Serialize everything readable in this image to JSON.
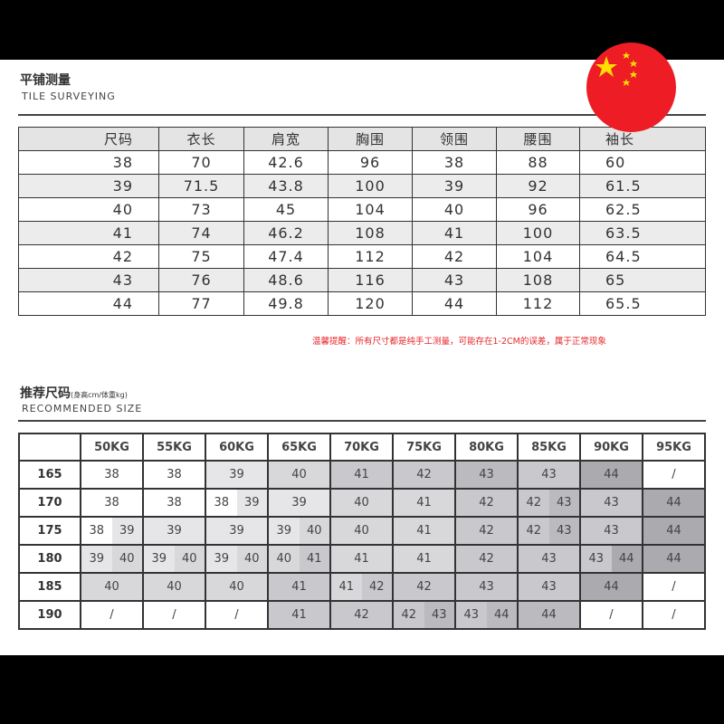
{
  "measure": {
    "title": "平铺测量",
    "subtitle": "TILE SURVEYING",
    "headers": [
      "尺码",
      "衣长",
      "肩宽",
      "胸围",
      "领围",
      "腰围",
      "袖长"
    ],
    "rows": [
      [
        "38",
        "70",
        "42.6",
        "96",
        "38",
        "88",
        "60"
      ],
      [
        "39",
        "71.5",
        "43.8",
        "100",
        "39",
        "92",
        "61.5"
      ],
      [
        "40",
        "73",
        "45",
        "104",
        "40",
        "96",
        "62.5"
      ],
      [
        "41",
        "74",
        "46.2",
        "108",
        "41",
        "100",
        "63.5"
      ],
      [
        "42",
        "75",
        "47.4",
        "112",
        "42",
        "104",
        "64.5"
      ],
      [
        "43",
        "76",
        "48.6",
        "116",
        "43",
        "108",
        "65"
      ],
      [
        "44",
        "77",
        "49.8",
        "120",
        "44",
        "112",
        "65.5"
      ]
    ],
    "note": "温馨提醒：所有尺寸都是纯手工测量，可能存在1-2CM的误差，属于正常现象"
  },
  "recommend": {
    "title": "推荐尺码",
    "title_note": "(身高cm/体重kg)",
    "subtitle": "RECOMMENDED SIZE",
    "weights": [
      "50KG",
      "55KG",
      "60KG",
      "65KG",
      "70KG",
      "75KG",
      "80KG",
      "85KG",
      "90KG",
      "95KG"
    ],
    "shade_colors": [
      "#ffffff",
      "#e6e6e8",
      "#d8d8db",
      "#c9c9cd",
      "#bbbbbf",
      "#aaaaaf"
    ],
    "rows": [
      {
        "height": "165",
        "cells": [
          [
            [
              "38",
              0
            ]
          ],
          [
            [
              "38",
              0
            ]
          ],
          [
            [
              "39",
              1
            ]
          ],
          [
            [
              "40",
              2
            ]
          ],
          [
            [
              "41",
              3
            ]
          ],
          [
            [
              "42",
              3
            ]
          ],
          [
            [
              "43",
              4
            ]
          ],
          [
            [
              "43",
              3
            ]
          ],
          [
            [
              "44",
              5
            ]
          ],
          [
            [
              "/",
              0
            ]
          ]
        ]
      },
      {
        "height": "170",
        "cells": [
          [
            [
              "38",
              0
            ]
          ],
          [
            [
              "38",
              0
            ]
          ],
          [
            [
              "38",
              0
            ],
            [
              "39",
              1
            ]
          ],
          [
            [
              "39",
              1
            ]
          ],
          [
            [
              "40",
              2
            ]
          ],
          [
            [
              "41",
              2
            ]
          ],
          [
            [
              "42",
              3
            ]
          ],
          [
            [
              "42",
              3
            ],
            [
              "43",
              4
            ]
          ],
          [
            [
              "43",
              3
            ]
          ],
          [
            [
              "44",
              5
            ]
          ]
        ]
      },
      {
        "height": "175",
        "cells": [
          [
            [
              "38",
              0
            ],
            [
              "39",
              1
            ]
          ],
          [
            [
              "39",
              1
            ]
          ],
          [
            [
              "39",
              1
            ]
          ],
          [
            [
              "39",
              1
            ],
            [
              "40",
              2
            ]
          ],
          [
            [
              "40",
              2
            ]
          ],
          [
            [
              "41",
              2
            ]
          ],
          [
            [
              "42",
              3
            ]
          ],
          [
            [
              "42",
              3
            ],
            [
              "43",
              4
            ]
          ],
          [
            [
              "43",
              3
            ]
          ],
          [
            [
              "44",
              5
            ]
          ]
        ]
      },
      {
        "height": "180",
        "cells": [
          [
            [
              "39",
              1
            ],
            [
              "40",
              2
            ]
          ],
          [
            [
              "39",
              1
            ],
            [
              "40",
              2
            ]
          ],
          [
            [
              "39",
              1
            ],
            [
              "40",
              2
            ]
          ],
          [
            [
              "40",
              2
            ],
            [
              "41",
              3
            ]
          ],
          [
            [
              "41",
              2
            ]
          ],
          [
            [
              "41",
              2
            ]
          ],
          [
            [
              "42",
              3
            ]
          ],
          [
            [
              "43",
              3
            ]
          ],
          [
            [
              "43",
              3
            ],
            [
              "44",
              5
            ]
          ],
          [
            [
              "44",
              5
            ]
          ]
        ]
      },
      {
        "height": "185",
        "cells": [
          [
            [
              "40",
              2
            ]
          ],
          [
            [
              "40",
              2
            ]
          ],
          [
            [
              "40",
              2
            ]
          ],
          [
            [
              "41",
              3
            ]
          ],
          [
            [
              "41",
              2
            ],
            [
              "42",
              3
            ]
          ],
          [
            [
              "42",
              3
            ]
          ],
          [
            [
              "43",
              3
            ]
          ],
          [
            [
              "43",
              3
            ]
          ],
          [
            [
              "44",
              5
            ]
          ],
          [
            [
              "/",
              0
            ]
          ]
        ]
      },
      {
        "height": "190",
        "cells": [
          [
            [
              "/",
              0
            ]
          ],
          [
            [
              "/",
              0
            ]
          ],
          [
            [
              "/",
              0
            ]
          ],
          [
            [
              "41",
              3
            ]
          ],
          [
            [
              "42",
              3
            ]
          ],
          [
            [
              "42",
              3
            ],
            [
              "43",
              4
            ]
          ],
          [
            [
              "43",
              3
            ],
            [
              "44",
              4
            ]
          ],
          [
            [
              "44",
              4
            ]
          ],
          [
            [
              "/",
              0
            ]
          ],
          [
            [
              "/",
              0
            ]
          ]
        ]
      }
    ]
  },
  "flag": {
    "icon": "china-flag-icon",
    "red": "#ee1c25",
    "yellow": "#ffde00"
  }
}
